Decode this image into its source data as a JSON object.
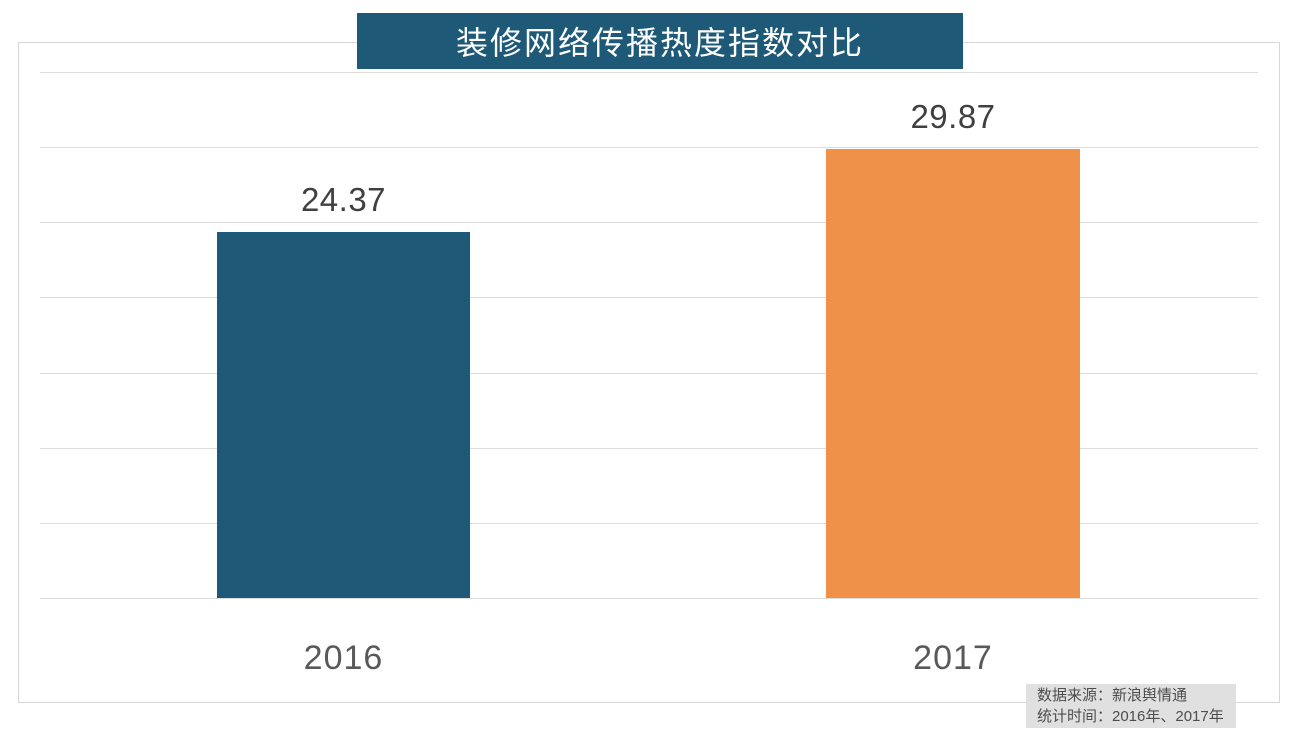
{
  "title": "装修网络传播热度指数对比",
  "source_note": {
    "line1": "数据来源：新浪舆情通",
    "line2": "统计时间：2016年、2017年"
  },
  "chart_data": {
    "type": "bar",
    "title": "装修网络传播热度指数对比",
    "categories": [
      "2016",
      "2017"
    ],
    "values": [
      24.37,
      29.87
    ],
    "value_labels": [
      "24.37",
      "29.87"
    ],
    "bar_colors": [
      "#1e5a78",
      "#ef9149"
    ],
    "ylim": [
      0,
      35
    ],
    "grid_interval": 5,
    "grid": "horizontal-only",
    "y_axis_labels": "none",
    "legend_position": "none",
    "xlabel": "",
    "ylabel": ""
  },
  "colors": {
    "title_bg": "#1e5a78",
    "title_text": "#ffffff",
    "bar_2016": "#1e5a78",
    "bar_2017": "#ef9149",
    "gridline": "#dcdcdc",
    "frame_border": "#d7d7d7",
    "value_label_text": "#404040",
    "category_label_text": "#595959",
    "source_bg": "#e0e0e0",
    "source_text": "#4d4d4d"
  }
}
